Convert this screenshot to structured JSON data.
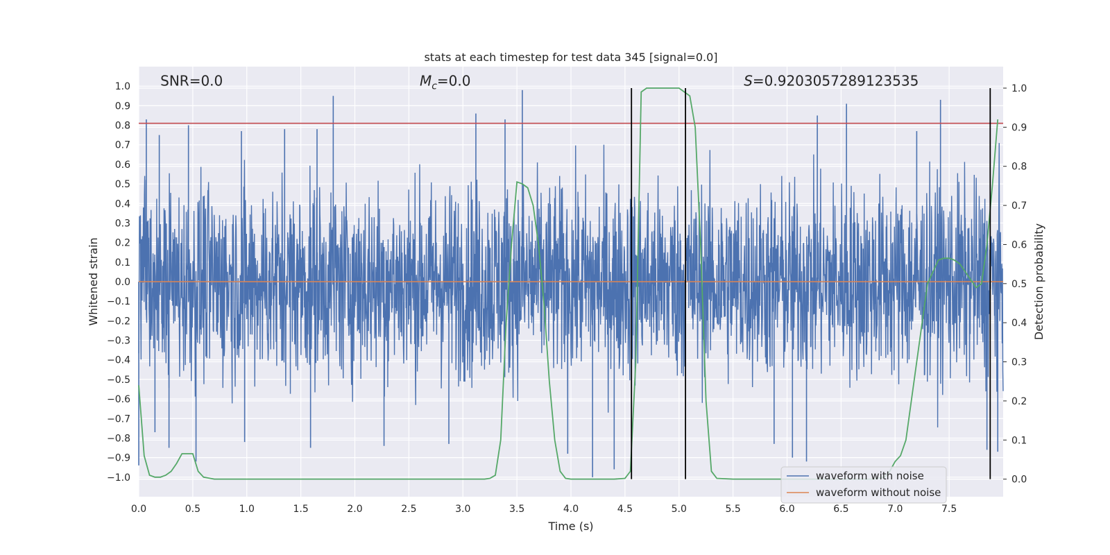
{
  "chart_data": {
    "type": "line",
    "title": "stats at each timestep for test data 345 [signal=0.0]",
    "xlabel": "Time (s)",
    "ylabel": "Whitened strain",
    "y2label": "Detection probability",
    "xlim": [
      0.0,
      8.0
    ],
    "ylim": [
      -1.1,
      1.1
    ],
    "y2lim": [
      -0.045,
      1.055
    ],
    "xticks": [
      0.0,
      0.5,
      1.0,
      1.5,
      2.0,
      2.5,
      3.0,
      3.5,
      4.0,
      4.5,
      5.0,
      5.5,
      6.0,
      6.5,
      7.0,
      7.5
    ],
    "xtick_labels": [
      "0.0",
      "0.5",
      "1.0",
      "1.5",
      "2.0",
      "2.5",
      "3.0",
      "3.5",
      "4.0",
      "4.5",
      "5.0",
      "5.5",
      "6.0",
      "6.5",
      "7.0",
      "7.5"
    ],
    "yticks": [
      1.0,
      0.9,
      0.8,
      0.7,
      0.6,
      0.5,
      0.4,
      0.3,
      0.2,
      0.1,
      0.0,
      -0.1,
      -0.2,
      -0.3,
      -0.4,
      -0.5,
      -0.6,
      -0.7,
      -0.8,
      -0.9,
      -1.0
    ],
    "ytick_labels": [
      "1.0",
      "0.9",
      "0.8",
      "0.7",
      "0.6",
      "0.5",
      "0.4",
      "0.3",
      "0.2",
      "0.1",
      "0.0",
      "−0.1",
      "−0.2",
      "−0.3",
      "−0.4",
      "−0.5",
      "−0.6",
      "−0.7",
      "−0.8",
      "−0.9",
      "−1.0"
    ],
    "y2ticks": [
      1.0,
      0.9,
      0.8,
      0.7,
      0.6,
      0.5,
      0.4,
      0.3,
      0.2,
      0.1,
      0.0
    ],
    "y2tick_labels": [
      "1.0",
      "0.9",
      "0.8",
      "0.7",
      "0.6",
      "0.5",
      "0.4",
      "0.3",
      "0.2",
      "0.1",
      "0.0"
    ],
    "grid": true,
    "threshold_line": {
      "axis": "y2",
      "value": 0.91,
      "color": "#c44e52"
    },
    "vertical_lines": [
      4.56,
      5.06,
      7.88
    ],
    "annotations": [
      {
        "label": "SNR=0.0",
        "x": 0.2,
        "y": 1.03
      },
      {
        "label_prefix": "M",
        "label_sub": "c",
        "label_suffix": "=0.0",
        "x": 2.6,
        "y": 1.03
      },
      {
        "label_prefix": "S",
        "label_suffix": "=0.9203057289123535",
        "x": 5.6,
        "y": 1.03
      }
    ],
    "series": [
      {
        "name": "waveform with noise",
        "color": "#4c72b0",
        "axis": "y",
        "style": "dense_noise",
        "band": 0.45,
        "spikes": [
          {
            "x": 0.07,
            "y": 0.83
          },
          {
            "x": 0.19,
            "y": 0.75
          },
          {
            "x": 0.46,
            "y": 0.8
          },
          {
            "x": 0.95,
            "y": 0.77
          },
          {
            "x": 1.35,
            "y": 0.78
          },
          {
            "x": 1.8,
            "y": 0.95
          },
          {
            "x": 1.65,
            "y": 0.78
          },
          {
            "x": 3.12,
            "y": 0.86
          },
          {
            "x": 3.39,
            "y": 0.83
          },
          {
            "x": 3.55,
            "y": 0.98
          },
          {
            "x": 6.28,
            "y": 0.85
          },
          {
            "x": 6.55,
            "y": 0.91
          },
          {
            "x": 7.42,
            "y": 0.93
          },
          {
            "x": 7.2,
            "y": 0.77
          },
          {
            "x": 0.0,
            "y": -0.94
          },
          {
            "x": 0.15,
            "y": -0.77
          },
          {
            "x": 0.28,
            "y": -0.85
          },
          {
            "x": 0.53,
            "y": -0.92
          },
          {
            "x": 0.98,
            "y": -0.82
          },
          {
            "x": 1.59,
            "y": -0.85
          },
          {
            "x": 2.27,
            "y": -0.84
          },
          {
            "x": 2.87,
            "y": -0.83
          },
          {
            "x": 3.97,
            "y": -0.88
          },
          {
            "x": 4.2,
            "y": -1.0
          },
          {
            "x": 4.4,
            "y": -0.96
          },
          {
            "x": 5.88,
            "y": -0.83
          },
          {
            "x": 6.05,
            "y": -0.9
          },
          {
            "x": 6.18,
            "y": -0.92
          },
          {
            "x": 7.85,
            "y": -0.86
          },
          {
            "x": 7.95,
            "y": -0.87
          }
        ]
      },
      {
        "name": "waveform without noise",
        "color": "#dd8452",
        "axis": "y",
        "x": [
          0.0,
          8.0
        ],
        "y": [
          0.0,
          0.0
        ]
      },
      {
        "name": "detection probability",
        "color": "#55a868",
        "axis": "y2",
        "x": [
          0.0,
          0.05,
          0.1,
          0.15,
          0.2,
          0.25,
          0.3,
          0.35,
          0.4,
          0.45,
          0.5,
          0.55,
          0.6,
          0.7,
          0.8,
          1.0,
          1.5,
          2.0,
          2.5,
          3.0,
          3.1,
          3.2,
          3.25,
          3.3,
          3.35,
          3.4,
          3.45,
          3.5,
          3.55,
          3.6,
          3.65,
          3.7,
          3.75,
          3.8,
          3.85,
          3.9,
          3.95,
          4.0,
          4.2,
          4.4,
          4.5,
          4.55,
          4.6,
          4.65,
          4.7,
          4.8,
          4.9,
          5.0,
          5.05,
          5.1,
          5.15,
          5.2,
          5.25,
          5.3,
          5.35,
          5.5,
          6.0,
          6.5,
          6.8,
          6.9,
          6.95,
          7.0,
          7.05,
          7.1,
          7.15,
          7.2,
          7.25,
          7.3,
          7.35,
          7.4,
          7.45,
          7.5,
          7.55,
          7.6,
          7.65,
          7.7,
          7.75,
          7.8,
          7.85,
          7.9,
          7.95
        ],
        "y": [
          0.24,
          0.06,
          0.01,
          0.005,
          0.005,
          0.01,
          0.02,
          0.04,
          0.065,
          0.065,
          0.065,
          0.02,
          0.005,
          0.0,
          0.0,
          0.0,
          0.0,
          0.0,
          0.0,
          0.0,
          0.0,
          0.0,
          0.002,
          0.01,
          0.1,
          0.4,
          0.6,
          0.76,
          0.755,
          0.745,
          0.7,
          0.6,
          0.45,
          0.25,
          0.1,
          0.02,
          0.002,
          0.0,
          0.0,
          0.0,
          0.002,
          0.02,
          0.3,
          0.99,
          1.0,
          1.0,
          1.0,
          1.0,
          0.99,
          0.98,
          0.9,
          0.6,
          0.2,
          0.02,
          0.002,
          0.0,
          0.0,
          0.0,
          0.0,
          0.005,
          0.02,
          0.045,
          0.06,
          0.1,
          0.2,
          0.3,
          0.4,
          0.5,
          0.53,
          0.56,
          0.565,
          0.565,
          0.56,
          0.55,
          0.53,
          0.51,
          0.49,
          0.5,
          0.6,
          0.75,
          0.92
        ]
      }
    ],
    "legend": {
      "position": "lower-right",
      "entries": [
        "waveform with noise",
        "waveform without noise"
      ]
    }
  }
}
